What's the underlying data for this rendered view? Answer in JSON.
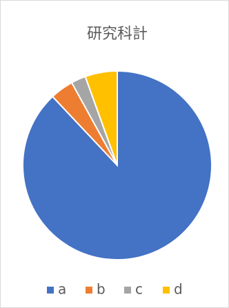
{
  "chart_data": {
    "type": "pie",
    "title": "研究科計",
    "categories": [
      "a",
      "b",
      "c",
      "d"
    ],
    "values": [
      88,
      4,
      2.5,
      5.5
    ],
    "colors": [
      "#4472c4",
      "#ed7d31",
      "#a5a5a5",
      "#ffc000"
    ],
    "legend": "bottom"
  }
}
